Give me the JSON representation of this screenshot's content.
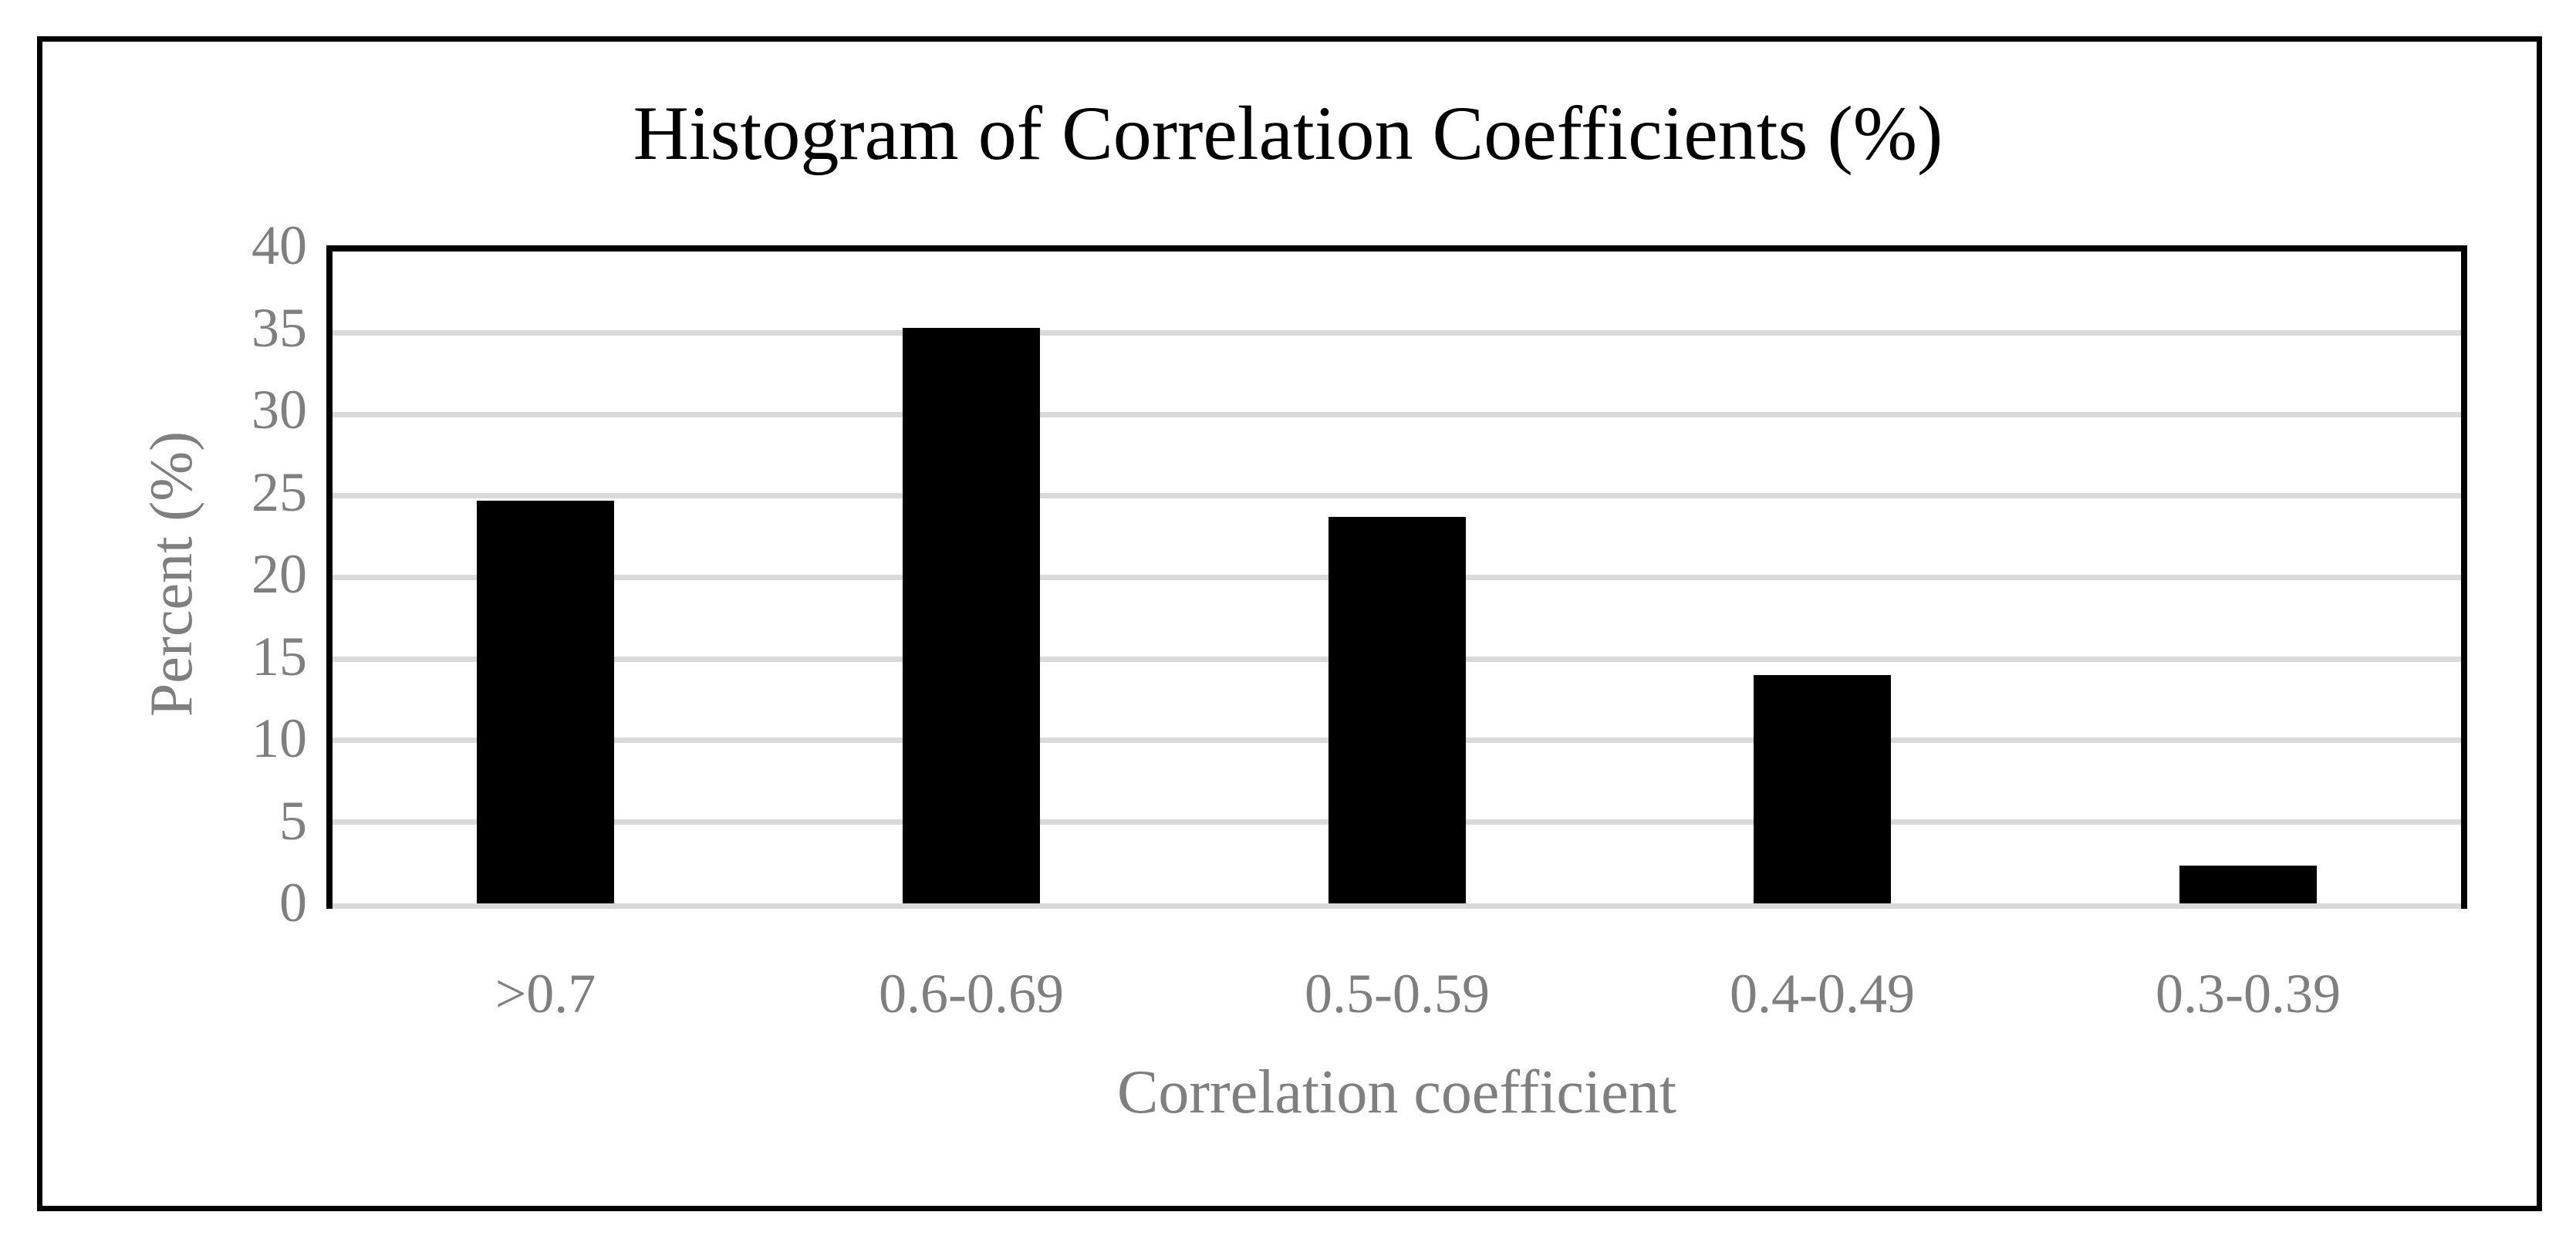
{
  "figure": {
    "title": "Histogram of Correlation Coefficients (%)"
  },
  "chart_data": {
    "type": "bar",
    "title": "Histogram of Correlation Coefficients (%)",
    "categories": [
      ">0.7",
      "0.6-0.69",
      "0.5-0.59",
      "0.4-0.49",
      "0.3-0.39"
    ],
    "values": [
      24.7,
      35.3,
      23.7,
      14.0,
      2.3
    ],
    "xlabel": "Correlation coefficient",
    "ylabel": "Percent (%)",
    "ylim": [
      0,
      40
    ],
    "yticks": [
      0,
      5,
      10,
      15,
      20,
      25,
      30,
      35,
      40
    ],
    "ytick_labels": [
      "0",
      "5",
      "10",
      "15",
      "20",
      "25",
      "30",
      "35",
      "40"
    ],
    "grid": true,
    "legend": "none",
    "colors": {
      "bar": "#000000",
      "gridline": "#D9D9D9",
      "baseline": "#D9D9D9",
      "axis_border": "#000000",
      "tick_label": "#7F7F7F",
      "axis_title": "#7F7F7F",
      "title": "#000000",
      "frame": "#000000",
      "background": "#FFFFFF"
    }
  }
}
